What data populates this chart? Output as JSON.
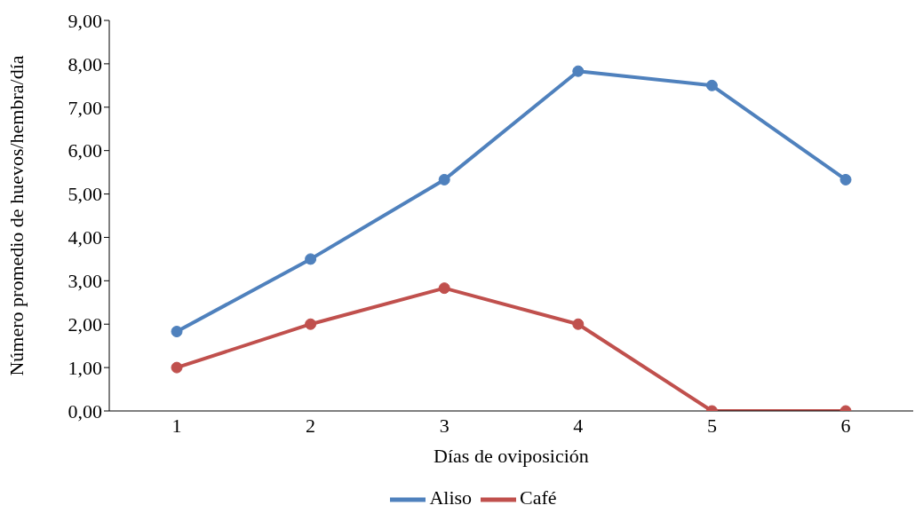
{
  "chart_data": {
    "type": "line",
    "xlabel": "Días de oviposición",
    "ylabel": "Número promedio de huevos/hembra/día",
    "categories": [
      "1",
      "2",
      "3",
      "4",
      "5",
      "6"
    ],
    "series": [
      {
        "name": "Aliso",
        "color": "#4f81bd",
        "values": [
          1.83,
          3.5,
          5.33,
          7.83,
          7.5,
          5.33
        ]
      },
      {
        "name": "Café",
        "color": "#c0504d",
        "values": [
          1,
          2,
          2.83,
          2,
          0,
          0
        ]
      }
    ],
    "ylim": [
      0,
      9
    ],
    "yticks": [
      {
        "value": 0,
        "label": "0,00"
      },
      {
        "value": 1,
        "label": "1,00"
      },
      {
        "value": 2,
        "label": "2,00"
      },
      {
        "value": 3,
        "label": "3,00"
      },
      {
        "value": 4,
        "label": "4,00"
      },
      {
        "value": 5,
        "label": "5,00"
      },
      {
        "value": 6,
        "label": "6,00"
      },
      {
        "value": 7,
        "label": "7,00"
      },
      {
        "value": 8,
        "label": "8,00"
      },
      {
        "value": 9,
        "label": "9,00"
      }
    ],
    "grid": false,
    "legend": "bottom",
    "marker": "circle",
    "line_style": "solid"
  }
}
